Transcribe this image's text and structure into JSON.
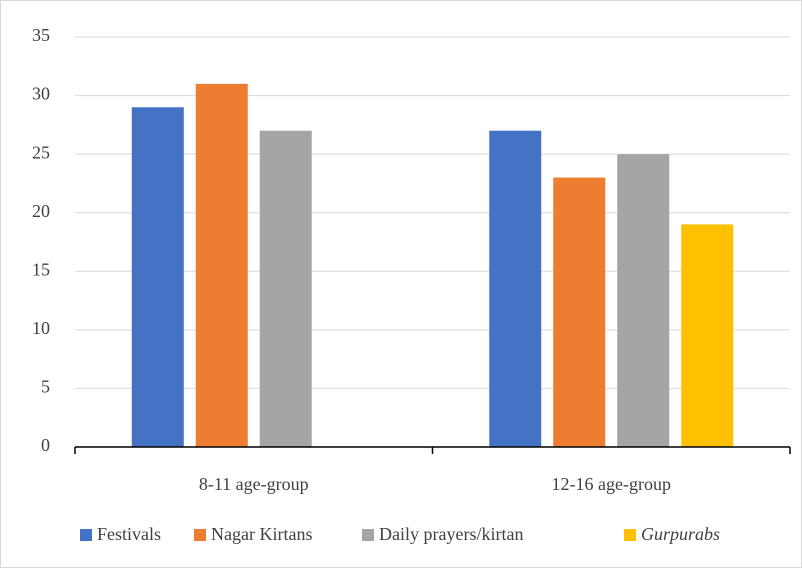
{
  "chart_data": {
    "type": "bar",
    "categories": [
      "8-11 age-group",
      "12-16 age-group"
    ],
    "series": [
      {
        "name": "Festivals",
        "color": "#4472c4",
        "values": [
          29,
          27
        ]
      },
      {
        "name": "Nagar Kirtans",
        "color": "#ed7d31",
        "values": [
          31,
          23
        ]
      },
      {
        "name": "Daily prayers/kirtan",
        "color": "#a5a5a5",
        "values": [
          27,
          25
        ]
      },
      {
        "name": "Gurpurabs",
        "color": "#ffc000",
        "values": [
          null,
          19
        ],
        "italic": true
      }
    ],
    "ylim": [
      0,
      35
    ],
    "yticks": [
      0,
      5,
      10,
      15,
      20,
      25,
      30,
      35
    ],
    "grid": true,
    "legend": "bottom"
  }
}
